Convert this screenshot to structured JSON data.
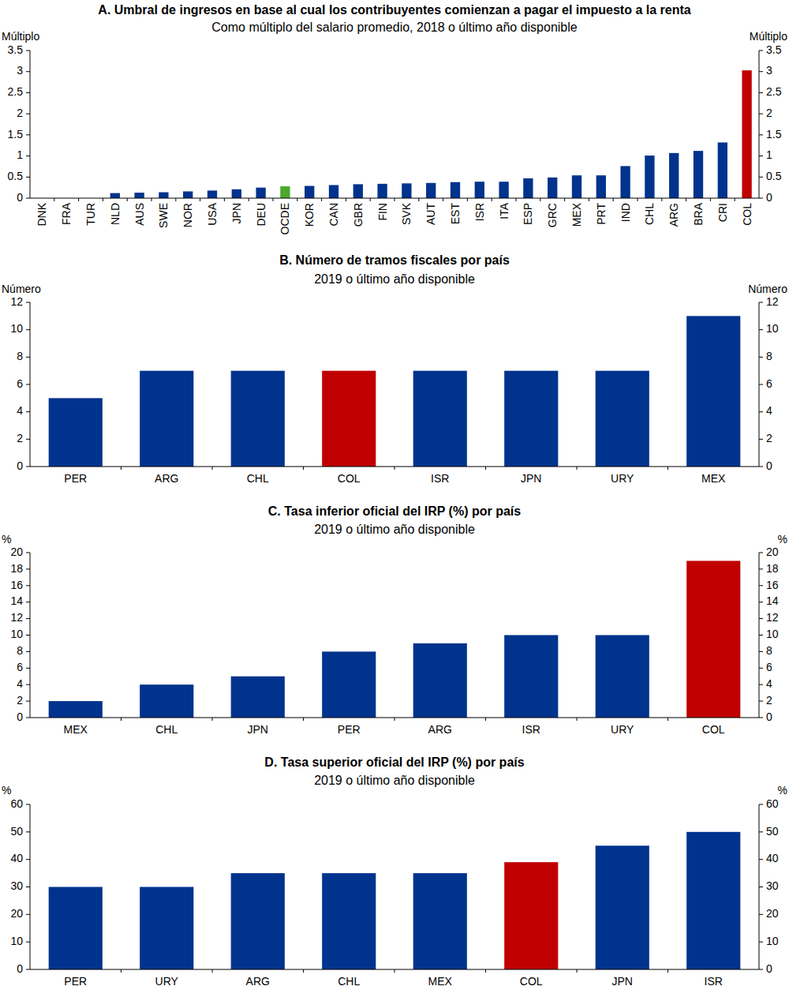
{
  "chart_data": [
    {
      "type": "bar",
      "title": "A. Umbral de ingresos en base al cual los contribuyentes comienzan a pagar el impuesto a la renta",
      "subtitle": "Como múltiplo del salario promedio, 2018 o último año disponible",
      "ylabel": "Múltiplo",
      "categories": [
        "DNK",
        "FRA",
        "TUR",
        "NLD",
        "AUS",
        "SWE",
        "NOR",
        "USA",
        "JPN",
        "DEU",
        "OCDE",
        "KOR",
        "CAN",
        "GBR",
        "FIN",
        "SVK",
        "AUT",
        "EST",
        "ISR",
        "ITA",
        "ESP",
        "GRC",
        "MEX",
        "PRT",
        "IND",
        "CHL",
        "ARG",
        "BRA",
        "CRI",
        "COL"
      ],
      "values": [
        0,
        0,
        0,
        0.12,
        0.13,
        0.14,
        0.16,
        0.18,
        0.21,
        0.25,
        0.28,
        0.29,
        0.31,
        0.33,
        0.34,
        0.35,
        0.36,
        0.38,
        0.39,
        0.39,
        0.47,
        0.49,
        0.54,
        0.54,
        0.76,
        1.01,
        1.07,
        1.12,
        1.32,
        3.03
      ],
      "colors": [
        "#00338d",
        "#00338d",
        "#00338d",
        "#00338d",
        "#00338d",
        "#00338d",
        "#00338d",
        "#00338d",
        "#00338d",
        "#00338d",
        "#4ca72a",
        "#00338d",
        "#00338d",
        "#00338d",
        "#00338d",
        "#00338d",
        "#00338d",
        "#00338d",
        "#00338d",
        "#00338d",
        "#00338d",
        "#00338d",
        "#00338d",
        "#00338d",
        "#00338d",
        "#00338d",
        "#00338d",
        "#00338d",
        "#00338d",
        "#c00000"
      ],
      "ylim": [
        0,
        3.5
      ],
      "yticks": [
        0,
        0.5,
        1,
        1.5,
        2,
        2.5,
        3,
        3.5
      ],
      "grid": false
    },
    {
      "type": "bar",
      "title": "B. Número de tramos fiscales por país",
      "subtitle": "2019 o último año disponible",
      "ylabel": "Número",
      "categories": [
        "PER",
        "ARG",
        "CHL",
        "COL",
        "ISR",
        "JPN",
        "URY",
        "MEX"
      ],
      "values": [
        5,
        7,
        7,
        7,
        7,
        7,
        7,
        11
      ],
      "colors": [
        "#00338d",
        "#00338d",
        "#00338d",
        "#c00000",
        "#00338d",
        "#00338d",
        "#00338d",
        "#00338d"
      ],
      "ylim": [
        0,
        12
      ],
      "yticks": [
        0,
        2,
        4,
        6,
        8,
        10,
        12
      ],
      "grid": false
    },
    {
      "type": "bar",
      "title": "C. Tasa inferior oficial del IRP (%) por país",
      "subtitle": "2019 o último año disponible",
      "ylabel": "%",
      "categories": [
        "MEX",
        "CHL",
        "JPN",
        "PER",
        "ARG",
        "ISR",
        "URY",
        "COL"
      ],
      "values": [
        2,
        4,
        5,
        8,
        9,
        10,
        10,
        19
      ],
      "colors": [
        "#00338d",
        "#00338d",
        "#00338d",
        "#00338d",
        "#00338d",
        "#00338d",
        "#00338d",
        "#c00000"
      ],
      "ylim": [
        0,
        20
      ],
      "yticks": [
        0,
        2,
        4,
        6,
        8,
        10,
        12,
        14,
        16,
        18,
        20
      ],
      "grid": false
    },
    {
      "type": "bar",
      "title": "D. Tasa superior oficial del IRP (%) por país",
      "subtitle": "2019 o último año disponible",
      "ylabel": "%",
      "categories": [
        "PER",
        "URY",
        "ARG",
        "CHL",
        "MEX",
        "COL",
        "JPN",
        "ISR"
      ],
      "values": [
        30,
        30,
        35,
        35,
        35,
        39,
        45,
        50
      ],
      "colors": [
        "#00338d",
        "#00338d",
        "#00338d",
        "#00338d",
        "#00338d",
        "#c00000",
        "#00338d",
        "#00338d"
      ],
      "ylim": [
        0,
        60
      ],
      "yticks": [
        0,
        10,
        20,
        30,
        40,
        50,
        60
      ],
      "grid": false
    }
  ]
}
